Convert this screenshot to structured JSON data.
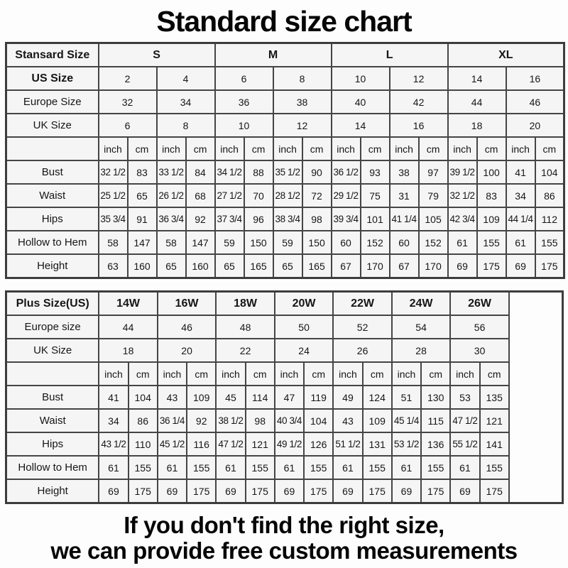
{
  "title": "Standard size chart",
  "footer": {
    "line1": "If you don't find the right size,",
    "line2": "we can provide free custom measurements"
  },
  "units": [
    "inch",
    "cm"
  ],
  "standard_table": {
    "corner_label": "Stansard Size",
    "corner_bold": true,
    "groups": [
      "S",
      "M",
      "L",
      "XL"
    ],
    "group_span": 4,
    "unit_pairs": 8,
    "trailing_empty_col": false,
    "header_rows": [
      {
        "label": "US Size",
        "bold": true,
        "values": [
          "2",
          "4",
          "6",
          "8",
          "10",
          "12",
          "14",
          "16"
        ]
      },
      {
        "label": "Europe Size",
        "bold": false,
        "values": [
          "32",
          "34",
          "36",
          "38",
          "40",
          "42",
          "44",
          "46"
        ]
      },
      {
        "label": "UK Size",
        "bold": false,
        "values": [
          "6",
          "8",
          "10",
          "12",
          "14",
          "16",
          "18",
          "20"
        ]
      }
    ],
    "measure_rows": [
      {
        "label": "Bust",
        "values": [
          "32 1/2",
          "83",
          "33 1/2",
          "84",
          "34 1/2",
          "88",
          "35 1/2",
          "90",
          "36 1/2",
          "93",
          "38",
          "97",
          "39 1/2",
          "100",
          "41",
          "104"
        ]
      },
      {
        "label": "Waist",
        "values": [
          "25 1/2",
          "65",
          "26 1/2",
          "68",
          "27 1/2",
          "70",
          "28 1/2",
          "72",
          "29 1/2",
          "75",
          "31",
          "79",
          "32 1/2",
          "83",
          "34",
          "86"
        ]
      },
      {
        "label": "Hips",
        "values": [
          "35 3/4",
          "91",
          "36 3/4",
          "92",
          "37 3/4",
          "96",
          "38 3/4",
          "98",
          "39 3/4",
          "101",
          "41 1/4",
          "105",
          "42 3/4",
          "109",
          "44 1/4",
          "112"
        ]
      },
      {
        "label": "Hollow to Hem",
        "values": [
          "58",
          "147",
          "58",
          "147",
          "59",
          "150",
          "59",
          "150",
          "60",
          "152",
          "60",
          "152",
          "61",
          "155",
          "61",
          "155"
        ]
      },
      {
        "label": "Height",
        "values": [
          "63",
          "160",
          "65",
          "160",
          "65",
          "165",
          "65",
          "165",
          "67",
          "170",
          "67",
          "170",
          "69",
          "175",
          "69",
          "175"
        ]
      }
    ]
  },
  "plus_table": {
    "corner_label": "Plus Size(US)",
    "corner_bold": true,
    "groups": [
      "14W",
      "16W",
      "18W",
      "20W",
      "22W",
      "24W",
      "26W"
    ],
    "group_span": 2,
    "unit_pairs": 7,
    "trailing_empty_col": true,
    "header_rows": [
      {
        "label": "Europe size",
        "bold": false,
        "values": [
          "44",
          "46",
          "48",
          "50",
          "52",
          "54",
          "56"
        ]
      },
      {
        "label": "UK Size",
        "bold": false,
        "values": [
          "18",
          "20",
          "22",
          "24",
          "26",
          "28",
          "30"
        ]
      }
    ],
    "measure_rows": [
      {
        "label": "Bust",
        "values": [
          "41",
          "104",
          "43",
          "109",
          "45",
          "114",
          "47",
          "119",
          "49",
          "124",
          "51",
          "130",
          "53",
          "135"
        ]
      },
      {
        "label": "Waist",
        "values": [
          "34",
          "86",
          "36 1/4",
          "92",
          "38 1/2",
          "98",
          "40 3/4",
          "104",
          "43",
          "109",
          "45 1/4",
          "115",
          "47 1/2",
          "121"
        ]
      },
      {
        "label": "Hips",
        "values": [
          "43 1/2",
          "110",
          "45 1/2",
          "116",
          "47 1/2",
          "121",
          "49 1/2",
          "126",
          "51 1/2",
          "131",
          "53 1/2",
          "136",
          "55 1/2",
          "141"
        ]
      },
      {
        "label": "Hollow to Hem",
        "values": [
          "61",
          "155",
          "61",
          "155",
          "61",
          "155",
          "61",
          "155",
          "61",
          "155",
          "61",
          "155",
          "61",
          "155"
        ]
      },
      {
        "label": "Height",
        "values": [
          "69",
          "175",
          "69",
          "175",
          "69",
          "175",
          "69",
          "175",
          "69",
          "175",
          "69",
          "175",
          "69",
          "175"
        ]
      }
    ]
  },
  "colors": {
    "border": "#454545",
    "cell_bg": "#f5f5f5",
    "text": "#111111",
    "page_bg": "#ffffff"
  }
}
